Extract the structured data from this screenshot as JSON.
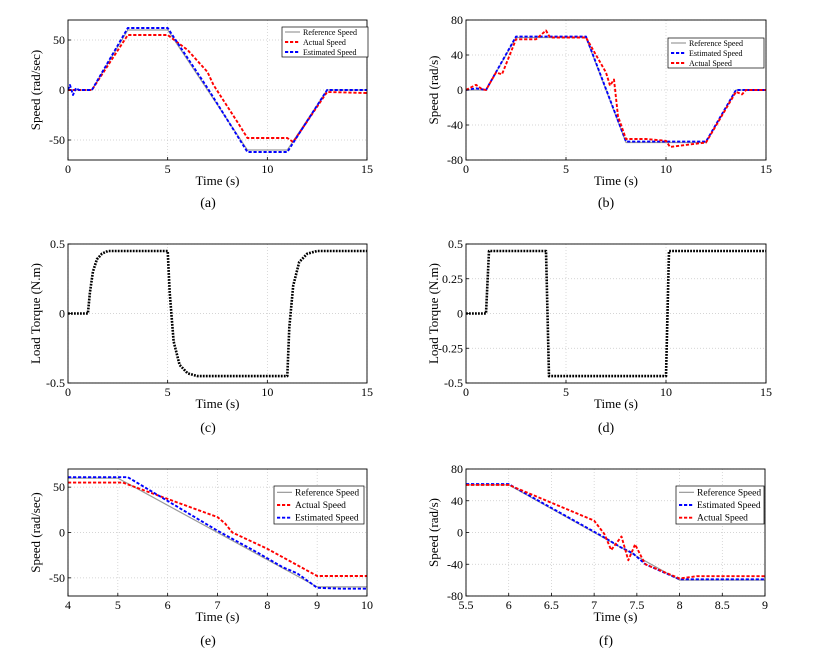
{
  "figure_captions": [
    "(a)",
    "(b)",
    "(c)",
    "(d)",
    "(e)",
    "(f)"
  ],
  "colors": {
    "reference": "#9a9a9a",
    "actual": "#ff0000",
    "estimated": "#0000ff",
    "load": "#000000",
    "grid": "#c8c8c8"
  },
  "chart_data": [
    {
      "id": "a",
      "type": "line",
      "caption": "(a)",
      "xlabel": "Time (s)",
      "ylabel": "Speed (rad/sec)",
      "xlim": [
        0,
        15
      ],
      "ylim": [
        -70,
        70
      ],
      "xticks": [
        0,
        5,
        10,
        15
      ],
      "xtick_labels": [
        "0",
        "5",
        "10",
        "15"
      ],
      "yticks": [
        -50,
        0,
        50
      ],
      "ytick_labels": [
        "-50",
        "0",
        "50"
      ],
      "grid": true,
      "legend": "top-right",
      "series": [
        {
          "name": "Reference Speed",
          "role": "reference",
          "x": [
            0,
            1.2,
            3,
            5,
            9,
            11,
            13,
            15
          ],
          "y": [
            0,
            0,
            60,
            60,
            -60,
            -60,
            0,
            0
          ]
        },
        {
          "name": "Actual Speed",
          "role": "actual",
          "x": [
            0,
            1.2,
            3,
            5,
            6,
            7,
            7.3,
            8.5,
            9,
            11,
            11.3,
            13,
            15
          ],
          "y": [
            0,
            0,
            55,
            55,
            40,
            18,
            5,
            -32,
            -48,
            -48,
            -52,
            -2,
            -3
          ]
        },
        {
          "name": "Estimated Speed",
          "role": "estimated",
          "x": [
            0,
            0.1,
            0.25,
            0.4,
            0.55,
            1.2,
            3,
            5,
            7,
            9,
            11,
            13,
            15
          ],
          "y": [
            0,
            5,
            -5,
            2,
            0,
            0,
            62,
            62,
            2,
            -62,
            -62,
            0,
            0
          ]
        }
      ]
    },
    {
      "id": "b",
      "type": "line",
      "caption": "(b)",
      "xlabel": "Time (s)",
      "ylabel": "Speed (rad/s)",
      "xlim": [
        0,
        15
      ],
      "ylim": [
        -80,
        80
      ],
      "xticks": [
        0,
        5,
        10,
        15
      ],
      "xtick_labels": [
        "0",
        "5",
        "10",
        "15"
      ],
      "yticks": [
        -80,
        -40,
        0,
        40,
        80
      ],
      "ytick_labels": [
        "-80",
        "-40",
        "0",
        "40",
        "80"
      ],
      "grid": true,
      "legend": "top-right",
      "series": [
        {
          "name": "Reference Speed",
          "role": "reference",
          "x": [
            0,
            1,
            2.5,
            6,
            8,
            12,
            13.5,
            15
          ],
          "y": [
            0,
            0,
            60,
            60,
            -60,
            -60,
            0,
            0
          ]
        },
        {
          "name": "Estimated Speed",
          "role": "estimated",
          "x": [
            0,
            0.5,
            1,
            2.5,
            4,
            6,
            8,
            10,
            12,
            13.5,
            15
          ],
          "y": [
            0,
            2,
            0,
            61,
            61,
            61,
            -59,
            -59,
            -59,
            0,
            0
          ]
        },
        {
          "name": "Actual Speed",
          "role": "actual",
          "x": [
            0,
            0.5,
            0.8,
            1,
            1.5,
            1.8,
            2.5,
            3.5,
            4,
            4.2,
            4.5,
            6,
            7,
            7.2,
            7.4,
            7.6,
            8,
            9,
            10,
            10.2,
            12,
            13.5,
            13.8,
            14,
            15
          ],
          "y": [
            0,
            6,
            1,
            0,
            20,
            18,
            58,
            58,
            68,
            60,
            60,
            60,
            20,
            5,
            12,
            -30,
            -56,
            -56,
            -58,
            -65,
            -60,
            -2,
            -5,
            0,
            0
          ]
        }
      ]
    },
    {
      "id": "c",
      "type": "line",
      "caption": "(c)",
      "xlabel": "Time (s)",
      "ylabel": "Load Torque (N.m)",
      "xlim": [
        0,
        15
      ],
      "ylim": [
        -0.5,
        0.5
      ],
      "xticks": [
        0,
        5,
        10,
        15
      ],
      "xtick_labels": [
        "0",
        "5",
        "10",
        "15"
      ],
      "yticks": [
        -0.5,
        0,
        0.5
      ],
      "ytick_labels": [
        "-0.5",
        "0",
        "0.5"
      ],
      "grid": true,
      "series": [
        {
          "name": "Load Torque",
          "role": "load",
          "x": [
            0,
            1,
            1.1,
            1.25,
            1.45,
            1.7,
            2,
            5,
            5.1,
            5.3,
            5.6,
            6,
            6.5,
            11,
            11.1,
            11.3,
            11.6,
            12,
            12.5,
            15
          ],
          "y": [
            0,
            0,
            0.15,
            0.3,
            0.39,
            0.43,
            0.45,
            0.45,
            0.15,
            -0.2,
            -0.37,
            -0.43,
            -0.45,
            -0.45,
            -0.1,
            0.2,
            0.37,
            0.43,
            0.45,
            0.45
          ]
        }
      ]
    },
    {
      "id": "d",
      "type": "line",
      "caption": "(d)",
      "xlabel": "Time (s)",
      "ylabel": "Load Torque (N.m)",
      "xlim": [
        0,
        15
      ],
      "ylim": [
        -0.5,
        0.5
      ],
      "xticks": [
        0,
        5,
        10,
        15
      ],
      "xtick_labels": [
        "0",
        "5",
        "10",
        "15"
      ],
      "yticks": [
        -0.5,
        -0.25,
        0,
        0.25,
        0.5
      ],
      "ytick_labels": [
        "-0.5",
        "-0.25",
        "0",
        "0.25",
        "0.5"
      ],
      "grid": true,
      "series": [
        {
          "name": "Load Torque",
          "role": "load",
          "x": [
            0,
            1,
            1.15,
            4,
            4.15,
            10,
            10.15,
            15
          ],
          "y": [
            0,
            0,
            0.45,
            0.45,
            -0.45,
            -0.45,
            0.45,
            0.45
          ]
        }
      ]
    },
    {
      "id": "e",
      "type": "line",
      "caption": "(e)",
      "xlabel": "Time (s)",
      "ylabel": "Speed (rad/sec)",
      "xlim": [
        4,
        10
      ],
      "ylim": [
        -70,
        70
      ],
      "xticks": [
        4,
        5,
        6,
        7,
        8,
        9,
        10
      ],
      "xtick_labels": [
        "4",
        "5",
        "6",
        "7",
        "8",
        "9",
        "10"
      ],
      "yticks": [
        -50,
        0,
        50
      ],
      "ytick_labels": [
        "-50",
        "0",
        "50"
      ],
      "grid": true,
      "legend": "top-right",
      "series": [
        {
          "name": "Reference Speed",
          "role": "reference",
          "x": [
            4,
            5,
            9,
            10
          ],
          "y": [
            60,
            60,
            -60,
            -60
          ]
        },
        {
          "name": "Actual Speed",
          "role": "actual",
          "x": [
            4,
            5.1,
            7,
            7.15,
            7.3,
            8,
            9,
            10
          ],
          "y": [
            55,
            55,
            17,
            10,
            0,
            -18,
            -48,
            -48
          ]
        },
        {
          "name": "Estimated Speed",
          "role": "estimated",
          "x": [
            4,
            5.2,
            7,
            7.4,
            7.8,
            8.3,
            8.6,
            9,
            9.5,
            10
          ],
          "y": [
            61,
            61,
            2,
            -10,
            -22,
            -38,
            -45,
            -61,
            -62,
            -62
          ]
        }
      ]
    },
    {
      "id": "f",
      "type": "line",
      "caption": "(f)",
      "xlabel": "Time (s)",
      "ylabel": "Speed (rad/s)",
      "xlim": [
        5.5,
        9
      ],
      "ylim": [
        -80,
        80
      ],
      "xticks": [
        5.5,
        6,
        6.5,
        7,
        7.5,
        8,
        8.5,
        9
      ],
      "xtick_labels": [
        "5.5",
        "6",
        "6.5",
        "7",
        "7.5",
        "8",
        "8.5",
        "9"
      ],
      "yticks": [
        -80,
        -40,
        0,
        40,
        80
      ],
      "ytick_labels": [
        "-80",
        "-40",
        "0",
        "40",
        "80"
      ],
      "grid": true,
      "legend": "top-right",
      "series": [
        {
          "name": "Reference Speed",
          "role": "reference",
          "x": [
            5.5,
            6,
            8,
            9
          ],
          "y": [
            60,
            60,
            -60,
            -60
          ]
        },
        {
          "name": "Estimated Speed",
          "role": "estimated",
          "x": [
            5.5,
            6,
            7.1,
            7.3,
            7.45,
            7.6,
            8,
            9
          ],
          "y": [
            61,
            61,
            -5,
            -18,
            -26,
            -40,
            -59,
            -59
          ]
        },
        {
          "name": "Actual Speed",
          "role": "actual",
          "x": [
            5.5,
            6,
            7,
            7.12,
            7.2,
            7.32,
            7.4,
            7.48,
            7.55,
            7.6,
            8,
            8.2,
            9
          ],
          "y": [
            60,
            60,
            15,
            -2,
            -22,
            -5,
            -35,
            -15,
            -30,
            -40,
            -58,
            -55,
            -55
          ]
        }
      ]
    }
  ]
}
